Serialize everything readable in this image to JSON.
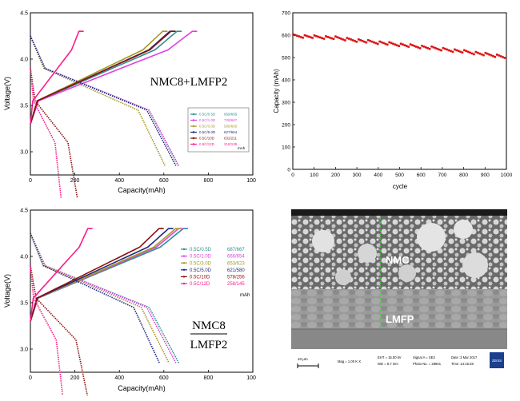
{
  "chart_data": [
    {
      "type": "line",
      "panel": "top-left",
      "xlabel": "Capacity(mAh)",
      "ylabel": "Voltage(V)",
      "xlim": [
        0,
        1000
      ],
      "ylim": [
        2.75,
        4.5
      ],
      "xticks": [
        "0",
        "200",
        "400",
        "600",
        "800",
        "1000"
      ],
      "yticks": [
        "3.0",
        "3.5",
        "4.0",
        "4.5"
      ],
      "annotation": "NMC8+LMFP2",
      "legend_unit": "mAh",
      "legend_position": "right",
      "series": [
        {
          "name": "0.5C/0.5D",
          "values": "659/665",
          "color": "#2f8f8f",
          "charge": 659,
          "discharge": 665
        },
        {
          "name": "0.5C/1.0D",
          "values": "728/667",
          "color": "#e040e0",
          "charge": 728,
          "discharge": 667
        },
        {
          "name": "0.5C/3.0D",
          "values": "595/605",
          "color": "#a39a1e",
          "charge": 595,
          "discharge": 605
        },
        {
          "name": "0.5C/5.0D",
          "values": "627/654",
          "color": "#1e2a7a",
          "charge": 627,
          "discharge": 654
        },
        {
          "name": "0.5C/10D",
          "values": "632/211",
          "color": "#8b1010",
          "charge": 632,
          "discharge": 211
        },
        {
          "name": "0.5C/12D",
          "values": "218/138",
          "color": "#ff1a8c",
          "charge": 218,
          "discharge": 138
        }
      ]
    },
    {
      "type": "scatter",
      "panel": "top-right",
      "xlabel": "cycle",
      "ylabel": "Capacity (mAh)",
      "xlim": [
        0,
        1000
      ],
      "ylim": [
        0,
        700
      ],
      "xticks": [
        "0",
        "100",
        "200",
        "300",
        "400",
        "500",
        "600",
        "700",
        "800",
        "900",
        "1000"
      ],
      "yticks": [
        "0",
        "100",
        "200",
        "300",
        "400",
        "500",
        "600",
        "700"
      ],
      "color": "#dd1111",
      "trend": {
        "x": [
          0,
          200,
          500,
          800,
          1000
        ],
        "y": [
          600,
          590,
          560,
          530,
          505
        ]
      }
    },
    {
      "type": "line",
      "panel": "bottom-left",
      "xlabel": "Capacity(mAh)",
      "ylabel": "Voltage(V)",
      "xlim": [
        0,
        1000
      ],
      "ylim": [
        2.75,
        4.5
      ],
      "xticks": [
        "0",
        "200",
        "400",
        "600",
        "800",
        "1000"
      ],
      "yticks": [
        "3.0",
        "3.5",
        "4.0",
        "4.5"
      ],
      "annotation_top": "NMC8",
      "annotation_bottom": "LMFP2",
      "legend_unit": "mAh",
      "legend_position": "right",
      "series": [
        {
          "name": "0.5C/0.5D",
          "values": "687/667",
          "color": "#2f8f8f",
          "charge": 687,
          "discharge": 667
        },
        {
          "name": "0.5C/1.0D",
          "values": "666/654",
          "color": "#e040e0",
          "charge": 666,
          "discharge": 654
        },
        {
          "name": "0.5C/3.0D",
          "values": "653/623",
          "color": "#a39a1e",
          "charge": 653,
          "discharge": 623
        },
        {
          "name": "0.5C/5.0D",
          "values": "621/580",
          "color": "#1e2a7a",
          "charge": 621,
          "discharge": 580
        },
        {
          "name": "0.5C/10D",
          "values": "578/256",
          "color": "#8b1010",
          "charge": 578,
          "discharge": 256
        },
        {
          "name": "0.5C/12D",
          "values": "258/145",
          "color": "#ff1a8c",
          "charge": 258,
          "discharge": 145
        }
      ]
    }
  ],
  "sem": {
    "label_nmc": "NMC",
    "label_lmfp": "LMFP",
    "scale_bar": "10 µm",
    "mag": "Mag =   1.00 K X",
    "eht": "EHT = 15.00 kV",
    "wd": "WD =  8.7 mm",
    "signal": "Signal A = SE2",
    "photo": "Photo No. = 28601",
    "date": "Date :3 Mar 2017",
    "time": "Time :14:15:28",
    "logo": "ZEISS"
  }
}
